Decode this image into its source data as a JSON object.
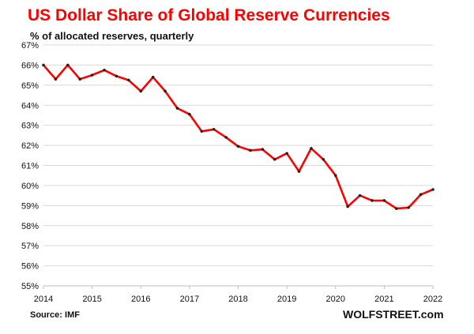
{
  "title": "US Dollar Share of Global Reserve Currencies",
  "subtitle": "% of allocated reserves, quarterly",
  "source": "Source: IMF",
  "brand": "WOLFSTREET.com",
  "colors": {
    "title": "#ff0000",
    "line": "#ff0000",
    "marker": "#222222",
    "grid": "#d9d9d9"
  },
  "chart_data": {
    "type": "line",
    "title": "US Dollar Share of Global Reserve Currencies",
    "subtitle": "% of allocated reserves, quarterly",
    "xlabel": "",
    "ylabel": "",
    "xlim": [
      2014,
      2022
    ],
    "ylim": [
      55,
      67
    ],
    "grid": true,
    "x_ticks": [
      "2014",
      "2015",
      "2016",
      "2017",
      "2018",
      "2019",
      "2020",
      "2021",
      "2022"
    ],
    "y_ticks": [
      "55%",
      "56%",
      "57%",
      "58%",
      "59%",
      "60%",
      "61%",
      "62%",
      "63%",
      "64%",
      "65%",
      "66%",
      "67%"
    ],
    "series": [
      {
        "x": [
          2014.0,
          2014.25,
          2014.5,
          2014.75,
          2015.0,
          2015.25,
          2015.5,
          2015.75,
          2016.0,
          2016.25,
          2016.5,
          2016.75,
          2017.0,
          2017.25,
          2017.5,
          2017.75,
          2018.0,
          2018.25,
          2018.5,
          2018.75,
          2019.0,
          2019.25,
          2019.5,
          2019.75,
          2020.0,
          2020.25,
          2020.5,
          2020.75,
          2021.0,
          2021.25,
          2021.5,
          2021.75,
          2022.0
        ],
        "values": [
          66.0,
          65.3,
          66.0,
          65.3,
          65.5,
          65.75,
          65.45,
          65.25,
          64.7,
          65.4,
          64.7,
          63.85,
          63.55,
          62.7,
          62.8,
          62.4,
          61.95,
          61.75,
          61.8,
          61.3,
          61.6,
          60.7,
          61.85,
          61.3,
          60.5,
          58.95,
          59.5,
          59.25,
          59.25,
          58.85,
          58.9,
          59.55,
          59.8
        ]
      }
    ]
  }
}
